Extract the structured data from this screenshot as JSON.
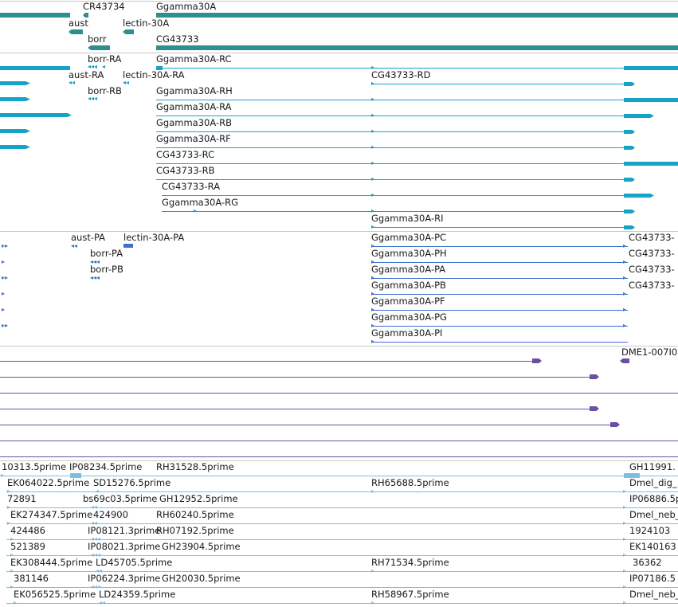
{
  "colors": {
    "gene": "#2f8f8f",
    "transcript": "#17a2c8",
    "protein": "#3f6fcf",
    "cdna": "#6b4fa6",
    "est": "#7fbde0",
    "separator": "#c8c8c8"
  },
  "tracks": {
    "genes": {
      "labels": [
        "CR43734",
        "Ggamma30A",
        "aust",
        "lectin-30A",
        "borr",
        "CG43733"
      ]
    },
    "transcripts": {
      "labels": [
        "borr-RA",
        "Ggamma30A-RC",
        "aust-RA",
        "lectin-30A-RA",
        "CG43733-RD",
        "borr-RB",
        "Ggamma30A-RH",
        "Ggamma30A-RA",
        "Ggamma30A-RB",
        "Ggamma30A-RF",
        "CG43733-RC",
        "CG43733-RB",
        "CG43733-RA",
        "Ggamma30A-RG",
        "Ggamma30A-RI"
      ]
    },
    "proteins": {
      "labels": [
        "aust-PA",
        "lectin-30A-PA",
        "Ggamma30A-PC",
        "CG43733-",
        "borr-PA",
        "Ggamma30A-PH",
        "CG43733-",
        "borr-PB",
        "Ggamma30A-PA",
        "CG43733-",
        "Ggamma30A-PB",
        "CG43733-",
        "Ggamma30A-PF",
        "Ggamma30A-PG",
        "Ggamma30A-PI"
      ]
    },
    "cdna": {
      "labels": [
        "DME1-007I0"
      ]
    },
    "est": {
      "labels": [
        "10313.5prime",
        "IP08234.5prime",
        "RH31528.5prime",
        "GH11991.",
        "EK064022.5prime",
        "SD15276.5prime",
        "RH65688.5prime",
        "Dmel_dig_",
        "72891",
        "bs69c03.5prime",
        "GH12952.5prime",
        "IP06886.5p",
        "EK274347.5prime",
        "424900",
        "RH60240.5prime",
        "Dmel_neb_",
        "424486",
        "IP08121.3prime",
        "RH07192.5prime",
        "1924103",
        "521389",
        "IP08021.3prime",
        "GH23904.5prime",
        "EK140163",
        "EK308444.5prime",
        "LD45705.5prime",
        "RH71534.5prime",
        "36362",
        "381146",
        "IP06224.3prime",
        "GH20030.5prime",
        "IP07186.5",
        "EK056525.5prime",
        "LD24359.5prime",
        "RH58967.5prime",
        "Dmel_neb_"
      ]
    }
  }
}
